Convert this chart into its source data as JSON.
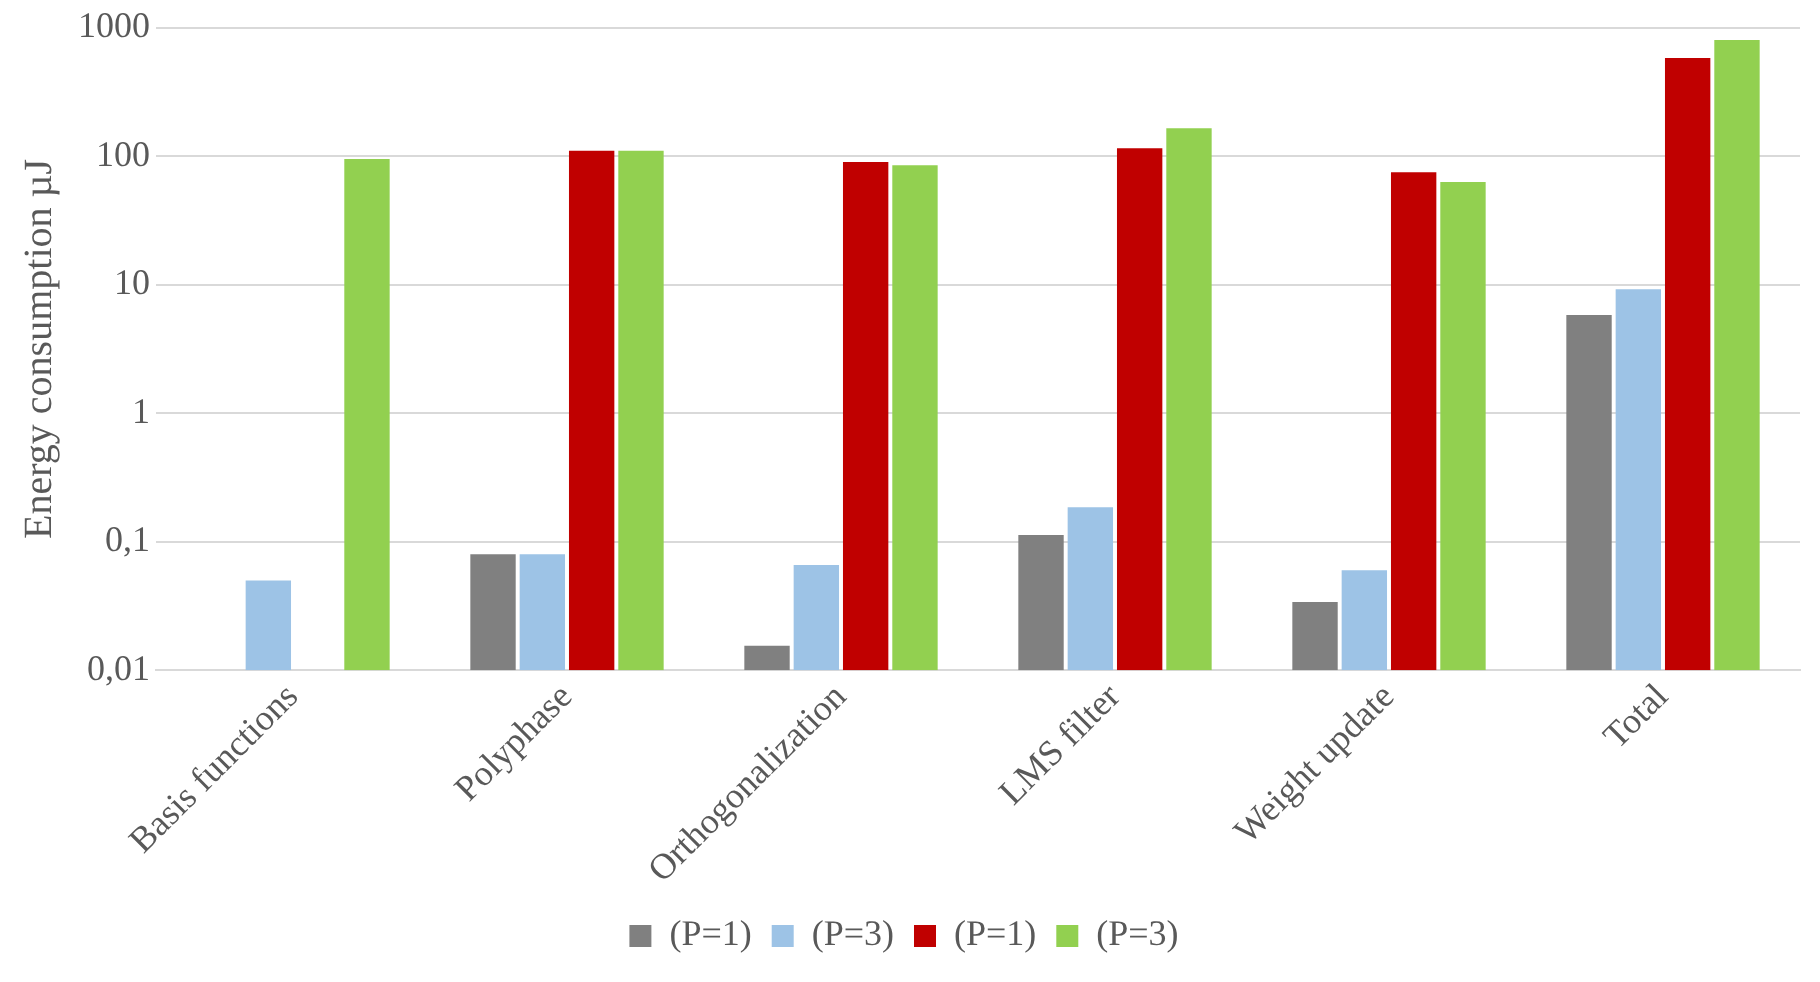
{
  "chart_data": {
    "type": "bar",
    "ylabel": "Energy consumption µJ",
    "categories": [
      "Basis functions",
      "Polyphase",
      "Orthogonalization",
      "LMS filter",
      "Weight update",
      "Total"
    ],
    "series": [
      {
        "name": "(P=1)",
        "color": "#808080",
        "values": [
          null,
          0.08,
          0.0155,
          0.113,
          0.034,
          5.8
        ]
      },
      {
        "name": "(P=3)",
        "color": "#9dc3e6",
        "values": [
          0.05,
          0.08,
          0.066,
          0.185,
          0.06,
          9.2
        ]
      },
      {
        "name": "(P=1)",
        "color": "#c00000",
        "values": [
          null,
          110,
          90,
          115,
          75,
          580
        ]
      },
      {
        "name": "(P=3)",
        "color": "#92d050",
        "values": [
          95,
          110,
          85,
          165,
          63,
          800
        ]
      }
    ],
    "log": true,
    "ylim": [
      0.01,
      1000
    ],
    "yticks": [
      {
        "value": 0.01,
        "label": "0,01"
      },
      {
        "value": 0.1,
        "label": "0,1"
      },
      1,
      10,
      100,
      1000
    ],
    "grid": "y",
    "legend": "bottom"
  }
}
